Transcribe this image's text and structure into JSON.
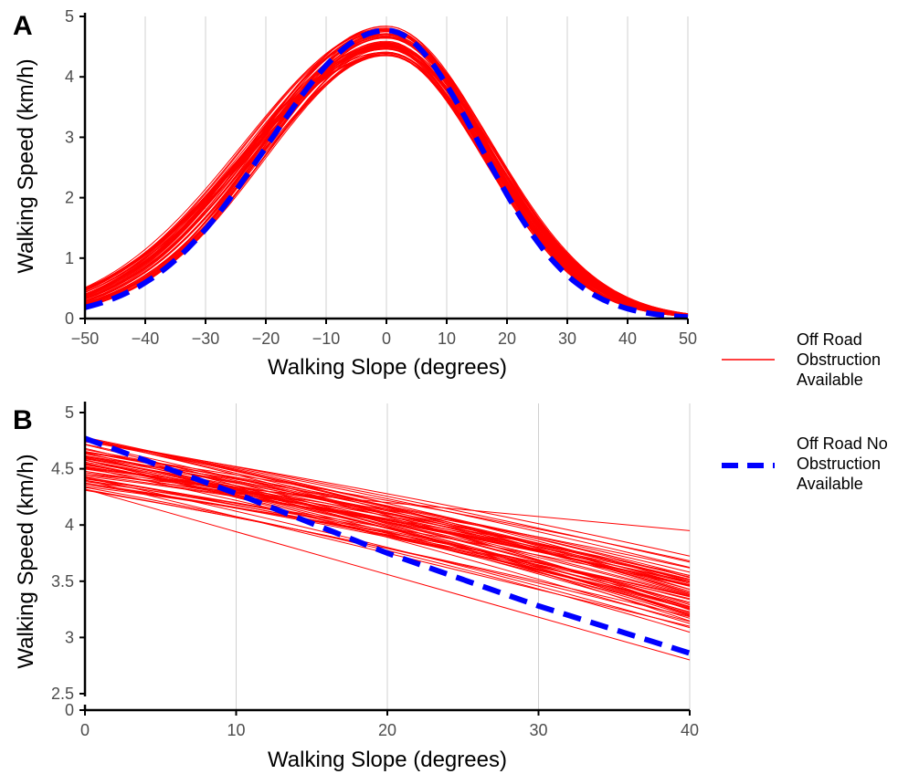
{
  "chart_data": [
    {
      "panel": "A",
      "type": "line",
      "xlabel": "Walking Slope (degrees)",
      "ylabel": "Walking Speed (km/h)",
      "xlim": [
        -50,
        50
      ],
      "ylim": [
        0,
        5
      ],
      "xticks": [
        -50,
        -40,
        -30,
        -20,
        -10,
        0,
        10,
        20,
        30,
        40,
        50
      ],
      "xtick_labels": [
        "−50",
        "−40",
        "−30",
        "−20",
        "−10",
        "0",
        "10",
        "20",
        "30",
        "40",
        "50"
      ],
      "yticks": [
        0,
        1,
        2,
        3,
        4,
        5
      ],
      "ytick_labels": [
        "0",
        "1",
        "2",
        "3",
        "4",
        "5"
      ],
      "grid": "vertical",
      "series": [
        {
          "name": "Off Road Obstruction Available",
          "style": "thin solid, ~60 curves",
          "color": "#ff0000",
          "x": [
            -50,
            -40,
            -30,
            -20,
            -10,
            0,
            10,
            20,
            30,
            40,
            50
          ],
          "y_range_low": [
            0.08,
            0.3,
            0.95,
            2.05,
            3.45,
            4.35,
            3.35,
            1.9,
            0.8,
            0.25,
            0.02
          ],
          "y_range_high": [
            0.18,
            0.55,
            1.35,
            2.6,
            3.95,
            4.85,
            3.75,
            2.15,
            0.95,
            0.32,
            0.06
          ]
        },
        {
          "name": "Off Road No Obstruction Available",
          "style": "thick dashed",
          "color": "#0000ff",
          "x": [
            -50,
            -40,
            -30,
            -20,
            -10,
            0,
            10,
            20,
            30,
            40,
            50
          ],
          "y": [
            0.05,
            0.35,
            0.95,
            2.15,
            3.55,
            4.77,
            3.4,
            1.7,
            0.55,
            0.1,
            0.01
          ]
        }
      ]
    },
    {
      "panel": "B",
      "type": "line",
      "xlabel": "Walking Slope (degrees)",
      "ylabel": "Walking Speed (km/h)",
      "xlim": [
        0,
        40
      ],
      "ylim": [
        2.5,
        5
      ],
      "axis_break": true,
      "xticks": [
        0,
        10,
        20,
        30,
        40
      ],
      "xtick_labels": [
        "0",
        "10",
        "20",
        "30",
        "40"
      ],
      "yticks": [
        2.5,
        3,
        3.5,
        4,
        4.5,
        5
      ],
      "ytick_labels": [
        "2.5",
        "3",
        "3.5",
        "4",
        "4.5",
        "5"
      ],
      "ybreak_label": "0",
      "grid": "vertical",
      "series": [
        {
          "name": "Off Road Obstruction Available",
          "style": "thin solid, ~60 lines",
          "color": "#ff0000",
          "x": [
            0,
            40
          ],
          "y_start_range": [
            4.3,
            4.82
          ],
          "y_end_range": [
            2.8,
            3.95
          ]
        },
        {
          "name": "Off Road No Obstruction Available",
          "style": "thick dashed",
          "color": "#0000ff",
          "x": [
            0,
            10,
            20,
            30,
            40
          ],
          "y": [
            4.77,
            4.28,
            3.75,
            3.28,
            2.86
          ]
        }
      ]
    }
  ],
  "legend": {
    "placement": "right",
    "items": [
      {
        "label_lines": [
          "Off Road",
          "Obstruction",
          "Available"
        ],
        "color": "#ff0000",
        "style": "solid"
      },
      {
        "label_lines": [
          "Off Road No",
          "Obstruction",
          "Available"
        ],
        "color": "#0000ff",
        "style": "dashed"
      }
    ]
  }
}
